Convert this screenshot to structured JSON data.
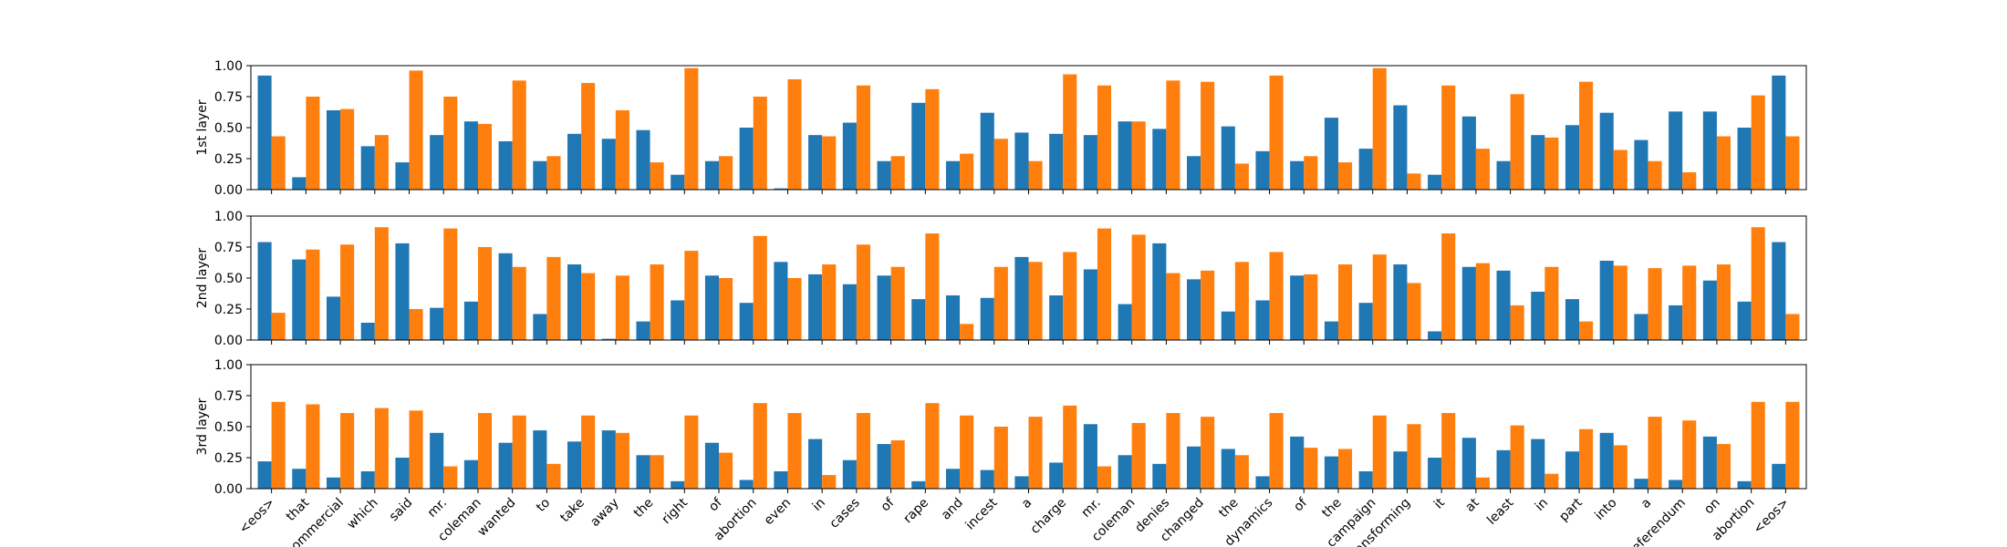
{
  "chart_data": {
    "type": "bar",
    "categories": [
      "<eos>",
      "that",
      "commercial",
      "which",
      "said",
      "mr.",
      "coleman",
      "wanted",
      "to",
      "take",
      "away",
      "the",
      "right",
      "of",
      "abortion",
      "even",
      "in",
      "cases",
      "of",
      "rape",
      "and",
      "incest",
      "a",
      "charge",
      "mr.",
      "coleman",
      "denies",
      "changed",
      "the",
      "dynamics",
      "of",
      "the",
      "campaign",
      "transforming",
      "it",
      "at",
      "least",
      "in",
      "part",
      "into",
      "a",
      "referendum",
      "on",
      "abortion",
      "<eos>"
    ],
    "series_colors": [
      "#1f77b4",
      "#ff7f0e"
    ],
    "ylim": [
      0,
      1
    ],
    "yticks": [
      "0.00",
      "0.25",
      "0.50",
      "0.75",
      "1.00"
    ],
    "grid": false,
    "panels": [
      {
        "ylabel": "1st layer",
        "series": [
          {
            "values": [
              0.92,
              0.1,
              0.64,
              0.35,
              0.22,
              0.44,
              0.55,
              0.39,
              0.23,
              0.45,
              0.41,
              0.48,
              0.12,
              0.23,
              0.5,
              0.01,
              0.44,
              0.54,
              0.23,
              0.7,
              0.23,
              0.62,
              0.46,
              0.45,
              0.44,
              0.55,
              0.49,
              0.27,
              0.51,
              0.31,
              0.23,
              0.58,
              0.33,
              0.68,
              0.12,
              0.59,
              0.23,
              0.44,
              0.52,
              0.62,
              0.4,
              0.63,
              0.63,
              0.5,
              0.92
            ]
          },
          {
            "values": [
              0.43,
              0.75,
              0.65,
              0.44,
              0.96,
              0.75,
              0.53,
              0.88,
              0.27,
              0.86,
              0.64,
              0.22,
              0.98,
              0.27,
              0.75,
              0.89,
              0.43,
              0.84,
              0.27,
              0.81,
              0.29,
              0.41,
              0.23,
              0.93,
              0.84,
              0.55,
              0.88,
              0.87,
              0.21,
              0.92,
              0.27,
              0.22,
              0.98,
              0.13,
              0.84,
              0.33,
              0.77,
              0.42,
              0.87,
              0.32,
              0.23,
              0.14,
              0.43,
              0.76,
              0.43
            ]
          }
        ]
      },
      {
        "ylabel": "2nd layer",
        "series": [
          {
            "values": [
              0.79,
              0.65,
              0.35,
              0.14,
              0.78,
              0.26,
              0.31,
              0.7,
              0.21,
              0.61,
              0.01,
              0.15,
              0.32,
              0.52,
              0.3,
              0.63,
              0.53,
              0.45,
              0.52,
              0.33,
              0.36,
              0.34,
              0.67,
              0.36,
              0.57,
              0.29,
              0.78,
              0.49,
              0.23,
              0.32,
              0.52,
              0.15,
              0.3,
              0.61,
              0.07,
              0.59,
              0.56,
              0.39,
              0.33,
              0.64,
              0.21,
              0.28,
              0.48,
              0.31,
              0.79
            ]
          },
          {
            "values": [
              0.22,
              0.73,
              0.77,
              0.91,
              0.25,
              0.9,
              0.75,
              0.59,
              0.67,
              0.54,
              0.52,
              0.61,
              0.72,
              0.5,
              0.84,
              0.5,
              0.61,
              0.77,
              0.59,
              0.86,
              0.13,
              0.59,
              0.63,
              0.71,
              0.9,
              0.85,
              0.54,
              0.56,
              0.63,
              0.71,
              0.53,
              0.61,
              0.69,
              0.46,
              0.86,
              0.62,
              0.28,
              0.59,
              0.15,
              0.6,
              0.58,
              0.6,
              0.61,
              0.91,
              0.21
            ]
          }
        ]
      },
      {
        "ylabel": "3rd layer",
        "series": [
          {
            "values": [
              0.22,
              0.16,
              0.09,
              0.14,
              0.25,
              0.45,
              0.23,
              0.37,
              0.47,
              0.38,
              0.47,
              0.27,
              0.06,
              0.37,
              0.07,
              0.14,
              0.4,
              0.23,
              0.36,
              0.06,
              0.16,
              0.15,
              0.1,
              0.21,
              0.52,
              0.27,
              0.2,
              0.34,
              0.32,
              0.1,
              0.42,
              0.26,
              0.14,
              0.3,
              0.25,
              0.41,
              0.31,
              0.4,
              0.3,
              0.45,
              0.08,
              0.07,
              0.42,
              0.06,
              0.2
            ]
          },
          {
            "values": [
              0.7,
              0.68,
              0.61,
              0.65,
              0.63,
              0.18,
              0.61,
              0.59,
              0.2,
              0.59,
              0.45,
              0.27,
              0.59,
              0.29,
              0.69,
              0.61,
              0.11,
              0.61,
              0.39,
              0.69,
              0.59,
              0.5,
              0.58,
              0.67,
              0.18,
              0.53,
              0.61,
              0.58,
              0.27,
              0.61,
              0.33,
              0.32,
              0.59,
              0.52,
              0.61,
              0.09,
              0.51,
              0.12,
              0.48,
              0.35,
              0.58,
              0.55,
              0.36,
              0.7,
              0.7
            ]
          }
        ]
      }
    ]
  }
}
